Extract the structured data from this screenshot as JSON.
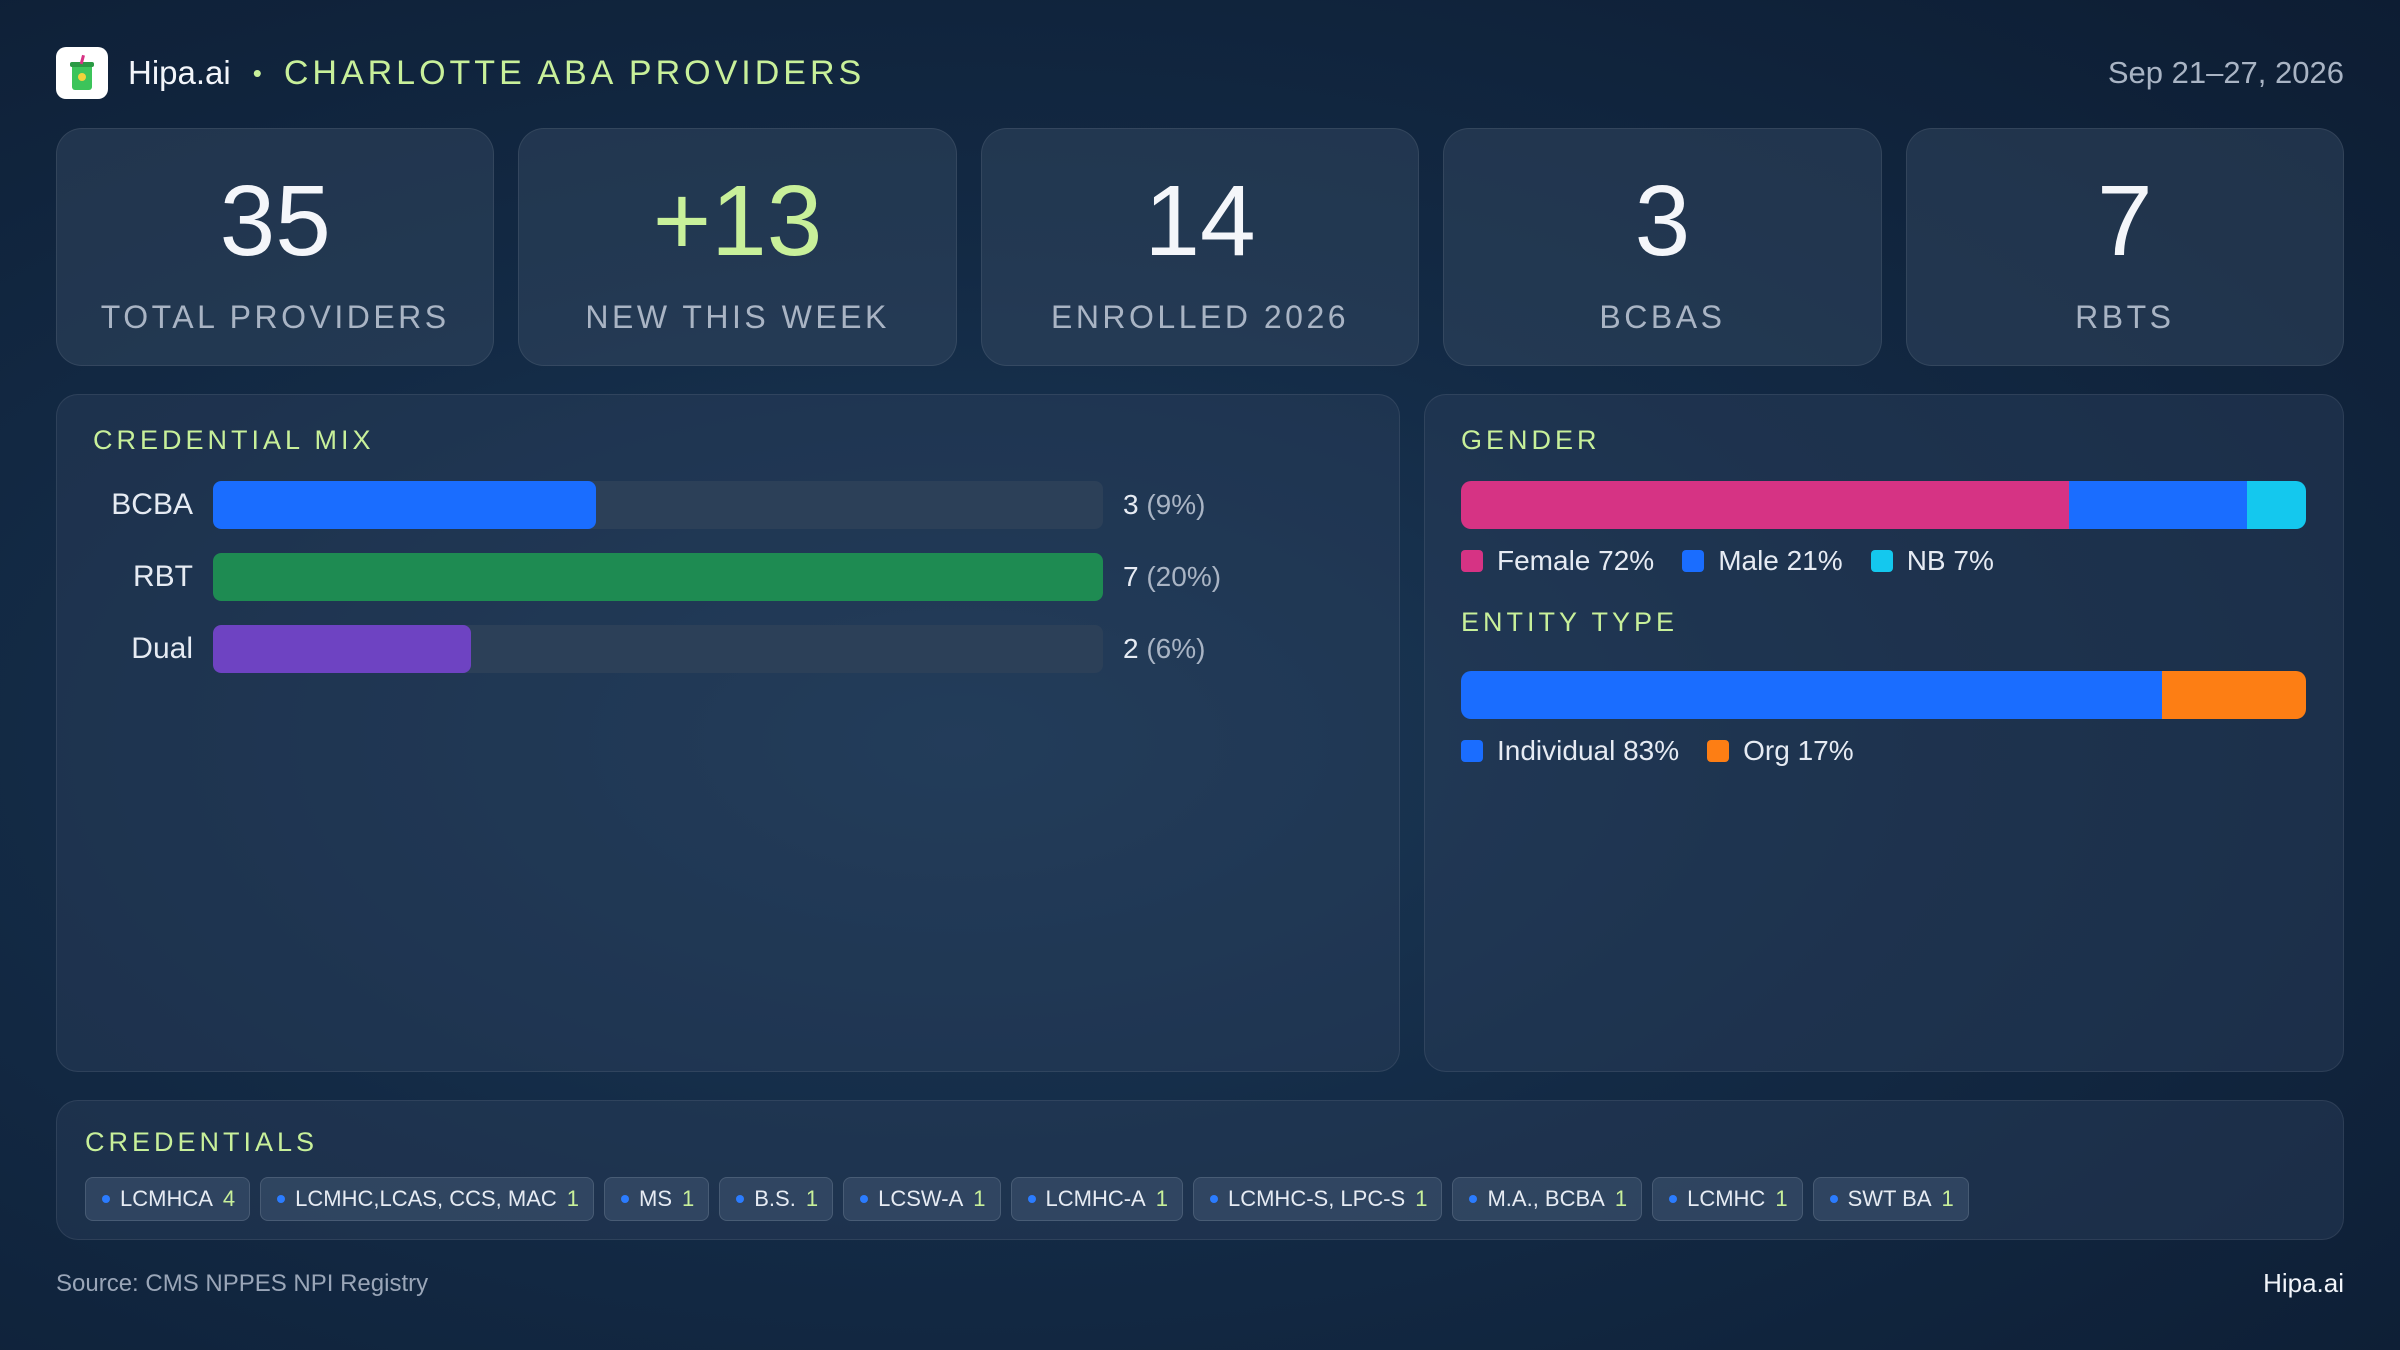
{
  "header": {
    "brand": "Hipa.ai",
    "separator": "•",
    "title": "CHARLOTTE ABA PROVIDERS",
    "date_range": "Sep 21–27, 2026"
  },
  "kpis": [
    {
      "value": "35",
      "label": "TOTAL PROVIDERS"
    },
    {
      "value": "+13",
      "label": "NEW THIS WEEK"
    },
    {
      "value": "14",
      "label": "ENROLLED 2026"
    },
    {
      "value": "3",
      "label": "BCBAS"
    },
    {
      "value": "7",
      "label": "RBTS"
    }
  ],
  "credential_mix": {
    "title": "CREDENTIAL MIX",
    "rows": [
      {
        "label": "BCBA",
        "count": "3",
        "pct": "(9%)",
        "fraction": 0.43,
        "color": "#1a6dff"
      },
      {
        "label": "RBT",
        "count": "7",
        "pct": "(20%)",
        "fraction": 1.0,
        "color": "#1e8b52"
      },
      {
        "label": "Dual",
        "count": "2",
        "pct": "(6%)",
        "fraction": 0.29,
        "color": "#6e43c2"
      }
    ]
  },
  "gender": {
    "title": "GENDER",
    "segments": [
      {
        "label": "Female 72%",
        "percent": 72,
        "color": "#d63384"
      },
      {
        "label": "Male 21%",
        "percent": 21,
        "color": "#1a6dff"
      },
      {
        "label": "NB 7%",
        "percent": 7,
        "color": "#14c8ee"
      }
    ]
  },
  "entity_type": {
    "title": "ENTITY TYPE",
    "segments": [
      {
        "label": "Individual 83%",
        "percent": 83,
        "color": "#1a6dff"
      },
      {
        "label": "Org 17%",
        "percent": 17,
        "color": "#fd7e14"
      }
    ]
  },
  "credentials": {
    "title": "CREDENTIALS",
    "chips": [
      {
        "label": "LCMHCA",
        "count": "4"
      },
      {
        "label": "LCMHC,LCAS, CCS, MAC",
        "count": "1"
      },
      {
        "label": "MS",
        "count": "1"
      },
      {
        "label": "B.S.",
        "count": "1"
      },
      {
        "label": "LCSW-A",
        "count": "1"
      },
      {
        "label": "LCMHC-A",
        "count": "1"
      },
      {
        "label": "LCMHC-S, LPC-S",
        "count": "1"
      },
      {
        "label": "M.A., BCBA",
        "count": "1"
      },
      {
        "label": "LCMHC",
        "count": "1"
      },
      {
        "label": "SWT BA",
        "count": "1"
      }
    ]
  },
  "footer": {
    "source": "Source: CMS NPPES NPI Registry",
    "brand": "Hipa.ai"
  },
  "icons": {
    "logo": "cup-logo-icon"
  },
  "colors": {
    "accent": "#c8f09a",
    "background": "#132a45"
  }
}
